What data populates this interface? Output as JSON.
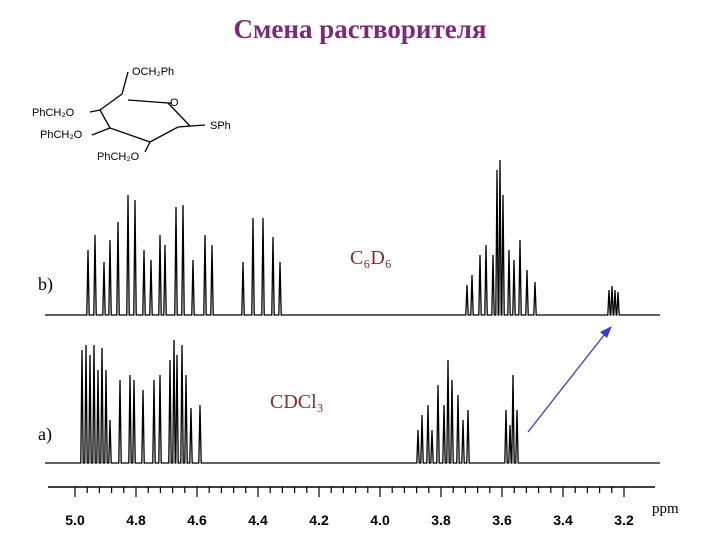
{
  "header": {
    "title": "Смена растворителя"
  },
  "molecule": {
    "labels": [
      "OCH₂Ph",
      "O",
      "PhCH₂O",
      "PhCH₂O",
      "SPh",
      "PhCH₂O"
    ]
  },
  "spectra": [
    {
      "label": "b)",
      "solvent": "C₆D₆"
    },
    {
      "label": "a)",
      "solvent": "CDCl₃"
    }
  ],
  "axis": {
    "ticks": [
      "5.0",
      "4.8",
      "4.6",
      "4.4",
      "4.2",
      "4.0",
      "3.8",
      "3.6",
      "3.4",
      "3.2"
    ],
    "unit": "ppm"
  }
}
